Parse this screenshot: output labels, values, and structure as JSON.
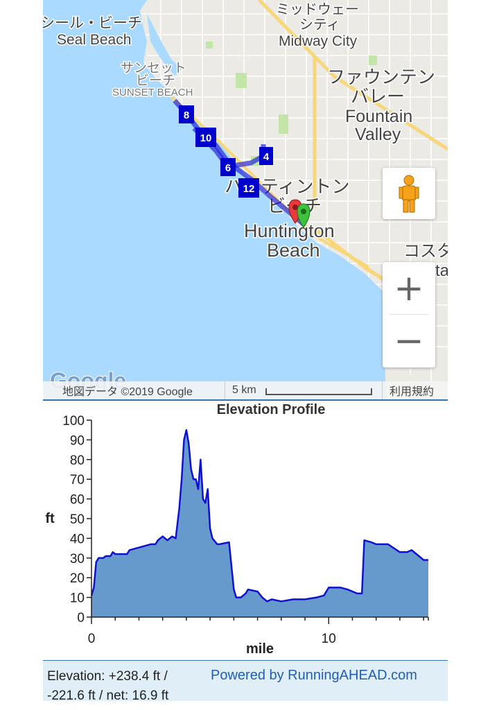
{
  "map": {
    "labels": {
      "seal_beach_jp": "シール・ビーチ",
      "seal_beach": "Seal Beach",
      "sunset_beach_jp_1": "サンセット",
      "sunset_beach_jp_2": "ビーチ",
      "sunset_beach": "SUNSET BEACH",
      "midway_city_jp_1": "ミッドウェー",
      "midway_city_jp_2": "シティ",
      "midway_city": "Midway City",
      "fountain_valley_jp_1": "ファウンテン",
      "fountain_valley_jp_2": "バレー",
      "fountain_valley_1": "Fountain",
      "fountain_valley_2": "Valley",
      "huntington_jp_1": "ハンティントン",
      "huntington_jp_2": "ビーチ",
      "huntington_1": "Huntington",
      "huntington_2": "Beach",
      "costa_jp": "コスタ",
      "costa": "ta"
    },
    "route_markers": [
      "8",
      "10",
      "6",
      "4",
      "12"
    ],
    "logo": "Google",
    "attribution": "地図データ ©2019 Google",
    "scale_label": "5 km",
    "terms": "利用規約",
    "zoom_in": "+",
    "zoom_out": "−",
    "colors": {
      "water": "#aadaff",
      "land": "#eceae5",
      "route": "#1a1ad6",
      "marker": "#0000cc"
    }
  },
  "chart_data": {
    "type": "area",
    "title": "Elevation Profile",
    "xlabel": "mile",
    "ylabel": "ft",
    "xlim": [
      0,
      14.2
    ],
    "ylim": [
      0,
      100
    ],
    "x_ticks": [
      0,
      10
    ],
    "y_ticks": [
      0,
      10,
      20,
      30,
      40,
      50,
      60,
      70,
      80,
      90,
      100
    ],
    "fill_color": "#6699cc",
    "line_color": "#1010d0",
    "x": [
      0,
      0.1,
      0.2,
      0.3,
      0.5,
      0.6,
      0.8,
      0.9,
      1.0,
      1.5,
      1.6,
      2.5,
      2.7,
      2.8,
      3.0,
      3.2,
      3.4,
      3.55,
      3.7,
      3.8,
      3.9,
      4.0,
      4.1,
      4.2,
      4.3,
      4.4,
      4.5,
      4.6,
      4.7,
      4.8,
      4.9,
      5.0,
      5.1,
      5.3,
      5.4,
      5.8,
      6.0,
      6.1,
      6.3,
      6.5,
      6.6,
      7.0,
      7.2,
      7.4,
      7.6,
      8.0,
      8.5,
      9.0,
      9.5,
      9.8,
      10.0,
      10.5,
      10.8,
      11.2,
      11.4,
      11.5,
      11.8,
      12.0,
      12.5,
      13.0,
      13.3,
      13.5,
      13.7,
      14.0,
      14.2
    ],
    "y": [
      11,
      15,
      28,
      30,
      30,
      31,
      31,
      33,
      32,
      32,
      34,
      37,
      37,
      39,
      41,
      39,
      41,
      40,
      55,
      70,
      90,
      95,
      88,
      75,
      70,
      70,
      65,
      80,
      60,
      58,
      65,
      45,
      40,
      37,
      37,
      38,
      14,
      10,
      10,
      12,
      14,
      13,
      10,
      8,
      9,
      8,
      9,
      9,
      10,
      11,
      15,
      15,
      14,
      12,
      12,
      39,
      38,
      37,
      37,
      33,
      33,
      34,
      32,
      29,
      29
    ]
  },
  "footer": {
    "elevation_summary": "Elevation: +238.4 ft / -221.6 ft / net: 16.9 ft",
    "powered_by": "Powered by RunningAHEAD.com"
  }
}
